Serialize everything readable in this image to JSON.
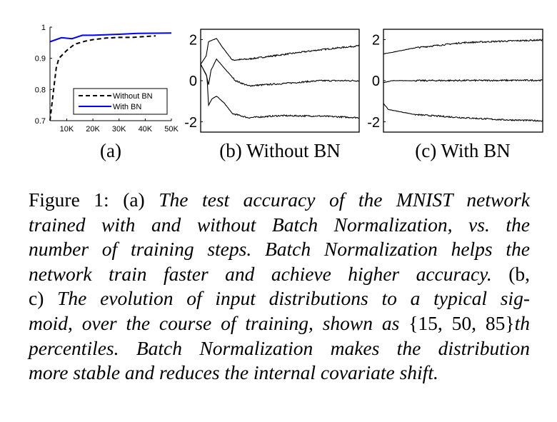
{
  "chart_data": [
    {
      "id": "a",
      "type": "line",
      "title": "",
      "xlabel": "",
      "ylabel": "",
      "xlim": [
        3600,
        50000
      ],
      "ylim": [
        0.7,
        1.0
      ],
      "xticks": [
        10000,
        20000,
        30000,
        40000,
        50000
      ],
      "xtick_labels": [
        "10K",
        "20K",
        "30K",
        "40K",
        "50K"
      ],
      "yticks": [
        0.7,
        0.8,
        0.9,
        1.0
      ],
      "ytick_labels": [
        "0.7",
        "0.8",
        "0.9",
        "1"
      ],
      "legend": {
        "placement": "bottom-right",
        "entries": [
          "Without BN",
          "With BN"
        ]
      },
      "series": [
        {
          "name": "Without BN",
          "color": "#000000",
          "style": "dashed",
          "x": [
            3600,
            5000,
            6000,
            7000,
            10000,
            13000,
            17000,
            20000,
            25000,
            30000,
            35000,
            40000,
            44000
          ],
          "y": [
            0.7,
            0.8,
            0.87,
            0.9,
            0.925,
            0.945,
            0.955,
            0.96,
            0.965,
            0.967,
            0.967,
            0.97,
            0.972
          ]
        },
        {
          "name": "With BN",
          "color": "#0000ff",
          "style": "solid",
          "x": [
            3600,
            8000,
            12000,
            16000,
            20000,
            30000,
            37000,
            50000
          ],
          "y": [
            0.953,
            0.966,
            0.963,
            0.974,
            0.974,
            0.977,
            0.98,
            0.981
          ]
        }
      ],
      "caption": "(a)"
    },
    {
      "id": "b",
      "type": "line",
      "title": "",
      "xlabel": "",
      "ylabel": "",
      "xlim": [
        0,
        1
      ],
      "ylim": [
        -2.5,
        2.5
      ],
      "yticks": [
        -2,
        0,
        2
      ],
      "ytick_labels": [
        "-2",
        "0",
        "2"
      ],
      "series": [
        {
          "name": "85th percentile",
          "x": [
            0,
            0.035,
            0.05,
            0.1,
            0.14,
            0.2,
            0.3,
            0.5,
            0.75,
            1
          ],
          "y": [
            0.8,
            1.2,
            1.9,
            2.05,
            1.6,
            1.0,
            1.05,
            1.25,
            1.5,
            1.7
          ]
        },
        {
          "name": "50th percentile",
          "x": [
            0,
            0.035,
            0.05,
            0.065,
            0.1,
            0.15,
            0.22,
            0.3,
            0.5,
            0.75,
            1
          ],
          "y": [
            0.8,
            0.3,
            -0.2,
            0.5,
            1.05,
            0.6,
            0.0,
            -0.25,
            -0.15,
            0.0,
            0.0
          ]
        },
        {
          "name": "15th percentile",
          "x": [
            0,
            0.04,
            0.05,
            0.07,
            0.1,
            0.15,
            0.2,
            0.3,
            0.5,
            0.75,
            1
          ],
          "y": [
            0.8,
            0.2,
            -1.2,
            -0.9,
            -0.75,
            -1.1,
            -1.6,
            -1.8,
            -1.7,
            -1.72,
            -1.8
          ]
        }
      ],
      "caption": "(b) Without BN"
    },
    {
      "id": "c",
      "type": "line",
      "title": "",
      "xlabel": "",
      "ylabel": "",
      "xlim": [
        0,
        1
      ],
      "ylim": [
        -2.5,
        2.5
      ],
      "yticks": [
        -2,
        0,
        2
      ],
      "ytick_labels": [
        "-2",
        "0",
        "2"
      ],
      "series": [
        {
          "name": "85th percentile",
          "x": [
            0,
            0.2,
            0.5,
            0.75,
            1
          ],
          "y": [
            1.3,
            1.6,
            1.85,
            1.92,
            1.98
          ]
        },
        {
          "name": "50th percentile",
          "x": [
            0,
            0.05,
            1
          ],
          "y": [
            -0.1,
            0.0,
            0.02
          ]
        },
        {
          "name": "15th percentile",
          "x": [
            0,
            0.03,
            0.2,
            0.5,
            0.75,
            1
          ],
          "y": [
            -1.1,
            -1.4,
            -1.65,
            -1.8,
            -1.9,
            -1.95
          ]
        }
      ],
      "caption": "(c) With BN"
    }
  ],
  "caption": {
    "lines": [
      [
        {
          "t": "Figure 1:  (a) ",
          "i": false
        },
        {
          "t": "The test accuracy of the MNIST network",
          "i": true
        }
      ],
      [
        {
          "t": "trained with and without Batch Normalization, vs.  the",
          "i": true
        }
      ],
      [
        {
          "t": "number of training steps. Batch Normalization helps the",
          "i": true
        }
      ],
      [
        {
          "t": "network train faster and achieve higher accuracy.",
          "i": true
        },
        {
          "t": "  (b,",
          "i": false
        }
      ],
      [
        {
          "t": "c) ",
          "i": false
        },
        {
          "t": "The evolution of input distributions to a typical sig-",
          "i": true
        }
      ],
      [
        {
          "t": "moid, over the course of training, shown as ",
          "i": true
        },
        {
          "t": "{15, 50, 85}",
          "i": false
        },
        {
          "t": "th",
          "i": true
        }
      ],
      [
        {
          "t": "percentiles. Batch Normalization makes the distribution",
          "i": true
        }
      ],
      [
        {
          "t": "more stable and reduces the internal covariate shift.",
          "i": true
        }
      ]
    ]
  }
}
